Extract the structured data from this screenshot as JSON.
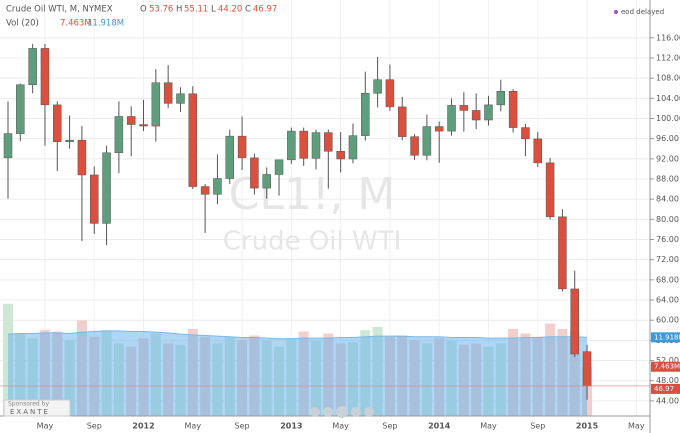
{
  "header": {
    "title": "Crude Oil WTI, M, NYMEX",
    "o_label": "O",
    "o": "53.76",
    "h_label": "H",
    "h": "55.11",
    "l_label": "L",
    "l": "44.20",
    "c_label": "C",
    "c": "46.97",
    "vol_label": "Vol (20)",
    "vol": "7.463M",
    "vol_ma": "11.918M",
    "status": "eod delayed"
  },
  "watermark": {
    "symbol": "CL1!, M",
    "name": "Crude Oil WTI"
  },
  "sponsor": {
    "label": "Sponsored by",
    "name": "EXANTE"
  },
  "tags": {
    "vol_ma": "11.918M",
    "vol": "7.463M",
    "close": "46.97"
  },
  "chart_data": {
    "type": "candlestick",
    "categories": [
      null,
      null,
      null,
      "May",
      null,
      null,
      null,
      "Sep",
      null,
      null,
      null,
      "2012",
      null,
      null,
      null,
      "May",
      null,
      null,
      null,
      "Sep",
      null,
      null,
      null,
      "2013",
      null,
      null,
      null,
      "May",
      null,
      null,
      null,
      "Sep",
      null,
      null,
      null,
      "2014",
      null,
      null,
      null,
      "May",
      null,
      null,
      null,
      "Sep",
      null,
      null,
      null,
      "2015",
      null,
      null,
      null,
      "May"
    ],
    "open": [
      92.2,
      97.0,
      106.7,
      113.9,
      102.7,
      95.4,
      95.7,
      88.8,
      79.2,
      93.2,
      100.4,
      98.8,
      98.5,
      107.1,
      103.0,
      104.9,
      86.5,
      84.96,
      88.1,
      96.5,
      92.2,
      86.2,
      88.9,
      91.8,
      97.5,
      92.1,
      97.2,
      93.5,
      91.97,
      96.6,
      105.0,
      107.7,
      102.3,
      96.4,
      92.7,
      98.4,
      97.5,
      102.6,
      101.6,
      99.7,
      102.7,
      105.4,
      98.2,
      95.96,
      91.2,
      80.5,
      66.2,
      53.76,
      null,
      null,
      null,
      null
    ],
    "high": [
      103.4,
      106.9,
      114.8,
      114.8,
      103.4,
      100.6,
      98.5,
      90.5,
      94.6,
      103.4,
      102.4,
      103.7,
      109.8,
      110.6,
      106.2,
      106.4,
      87.0,
      92.9,
      97.8,
      100.4,
      93.0,
      90.3,
      91.5,
      98.2,
      98.2,
      97.8,
      97.8,
      97.3,
      99.0,
      109.3,
      112.2,
      110.7,
      104.3,
      96.9,
      100.8,
      99.4,
      104.0,
      105.2,
      104.99,
      104.5,
      107.7,
      105.8,
      98.9,
      97.3,
      92.2,
      82.0,
      69.8,
      55.11,
      null,
      null,
      null,
      null
    ],
    "low": [
      84.1,
      95.5,
      105.0,
      94.6,
      89.6,
      94.0,
      75.7,
      77.1,
      74.9,
      89.2,
      92.5,
      97.5,
      95.4,
      102.1,
      101.3,
      86.0,
      77.3,
      83.0,
      87.0,
      89.8,
      84.9,
      84.1,
      84.7,
      91.0,
      90.6,
      89.9,
      86.1,
      89.3,
      91.1,
      95.6,
      102.2,
      101.5,
      95.7,
      91.8,
      91.7,
      91.2,
      96.6,
      97.4,
      97.9,
      98.6,
      101.4,
      97.2,
      92.5,
      90.4,
      80.0,
      65.7,
      52.7,
      44.2,
      null,
      null,
      null,
      null
    ],
    "close": [
      97.0,
      106.7,
      113.9,
      102.7,
      95.4,
      95.7,
      88.8,
      79.2,
      93.2,
      100.4,
      98.8,
      98.5,
      107.1,
      103.0,
      104.9,
      86.5,
      84.96,
      88.1,
      96.5,
      92.2,
      86.2,
      88.9,
      91.8,
      97.5,
      92.1,
      97.2,
      93.5,
      91.97,
      96.6,
      105.0,
      107.7,
      102.3,
      96.4,
      92.7,
      98.4,
      97.5,
      102.6,
      101.6,
      99.7,
      102.7,
      105.4,
      98.2,
      95.96,
      91.2,
      80.5,
      66.2,
      53.3,
      46.97,
      null,
      null,
      null,
      null
    ],
    "volume": [
      17.0,
      12.5,
      11.8,
      13.0,
      12.8,
      11.5,
      14.5,
      12.0,
      13.0,
      11.0,
      10.5,
      11.8,
      12.5,
      11.0,
      10.8,
      13.2,
      12.0,
      11.0,
      12.0,
      11.5,
      12.2,
      11.5,
      10.5,
      11.8,
      12.8,
      11.5,
      12.5,
      11.0,
      11.2,
      13.0,
      13.5,
      12.0,
      12.2,
      11.5,
      11.0,
      11.8,
      11.5,
      10.8,
      11.0,
      10.5,
      11.0,
      13.2,
      12.5,
      12.0,
      14.0,
      13.2,
      12.8,
      7.463,
      null,
      null,
      null,
      null
    ],
    "volume_ma": [
      12.4,
      12.5,
      12.5,
      12.6,
      12.6,
      12.5,
      12.7,
      12.8,
      12.9,
      12.9,
      12.8,
      12.8,
      12.7,
      12.6,
      12.4,
      12.3,
      12.2,
      12.1,
      12.0,
      11.9,
      11.9,
      11.8,
      11.7,
      11.7,
      11.8,
      11.8,
      11.8,
      11.9,
      11.9,
      12.0,
      12.1,
      12.1,
      12.1,
      12.0,
      12.0,
      12.0,
      11.9,
      11.9,
      11.9,
      11.8,
      11.8,
      11.8,
      11.9,
      11.9,
      12.0,
      12.0,
      12.0,
      11.918,
      null,
      null,
      null,
      null
    ],
    "up_color": "#5e9e7c",
    "down_color": "#d9503f",
    "ylim": [
      41,
      123.5
    ],
    "yticks": [
      {
        "value": 44,
        "label": "44.00"
      },
      {
        "value": 48,
        "label": "48.00"
      },
      {
        "value": 52,
        "label": "52.00"
      },
      {
        "value": 56,
        "label": "56.00"
      },
      {
        "value": 60,
        "label": "60.00"
      },
      {
        "value": 64,
        "label": "64.00"
      },
      {
        "value": 68,
        "label": "68.00"
      },
      {
        "value": 72,
        "label": "72.00"
      },
      {
        "value": 76,
        "label": "76.00"
      },
      {
        "value": 80,
        "label": "80.00"
      },
      {
        "value": 84,
        "label": "84.00"
      },
      {
        "value": 88,
        "label": "88.00"
      },
      {
        "value": 92,
        "label": "92.00"
      },
      {
        "value": 96,
        "label": "96.00"
      },
      {
        "value": 100,
        "label": "100.00"
      },
      {
        "value": 104,
        "label": "104.00"
      },
      {
        "value": 108,
        "label": "108.00"
      },
      {
        "value": 112,
        "label": "112.00"
      },
      {
        "value": 116,
        "label": "116.00"
      }
    ],
    "grid": true
  }
}
